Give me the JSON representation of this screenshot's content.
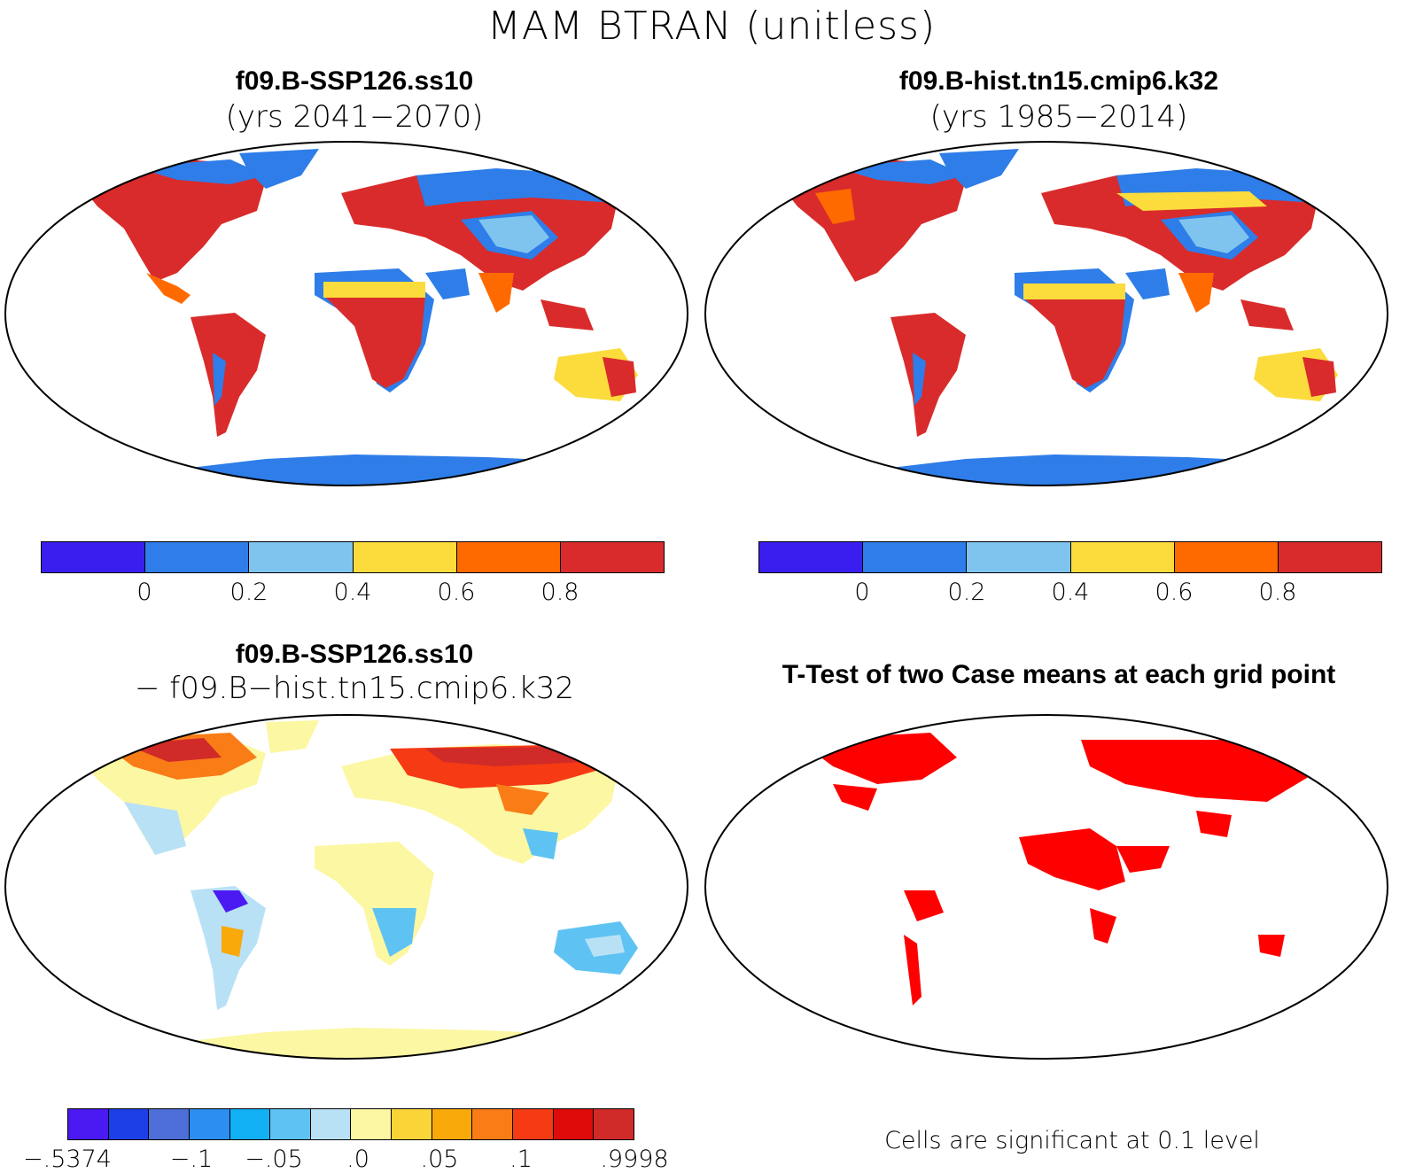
{
  "title": "MAM BTRAN (unitless)",
  "panels": {
    "top_left": {
      "title": "f09.B-SSP126.ss10",
      "subtitle": "(yrs 2041−2070)"
    },
    "top_right": {
      "title": "f09.B-hist.tn15.cmip6.k32",
      "subtitle": "(yrs 1985−2014)"
    },
    "bottom_left": {
      "title": "f09.B-SSP126.ss10",
      "subtitle": "− f09.B−hist.tn15.cmip6.k32"
    },
    "bottom_right": {
      "title": "T-Test of two Case means at each grid point",
      "note": "Cells are significant at 0.1 level"
    }
  },
  "colorbar_abs": {
    "colors": [
      "#3a1ef0",
      "#2e7de8",
      "#7ec4ee",
      "#fbdc3c",
      "#ff6a00",
      "#d92b2b"
    ],
    "labels": [
      "0",
      "0.2",
      "0.4",
      "0.6",
      "0.8"
    ]
  },
  "colorbar_diff": {
    "colors": [
      "#4b1af2",
      "#1d3fe8",
      "#4e6fd8",
      "#2b8ef0",
      "#12b0f5",
      "#5ec3f2",
      "#b9e1f6",
      "#fcf7a2",
      "#fbd437",
      "#f9a90a",
      "#f97c17",
      "#f53a14",
      "#df0a0a",
      "#d02b28"
    ],
    "labels": [
      "−.5374",
      "−.1",
      "−.05",
      ".0",
      ".05",
      ".1",
      ".9998"
    ]
  },
  "map_colors": {
    "ocean": "#ffffff",
    "land_wet": "#d92b2b",
    "land_dry": "#2e7de8",
    "diff_neutral": "#fcf7a2",
    "signif": "#ff0000"
  }
}
